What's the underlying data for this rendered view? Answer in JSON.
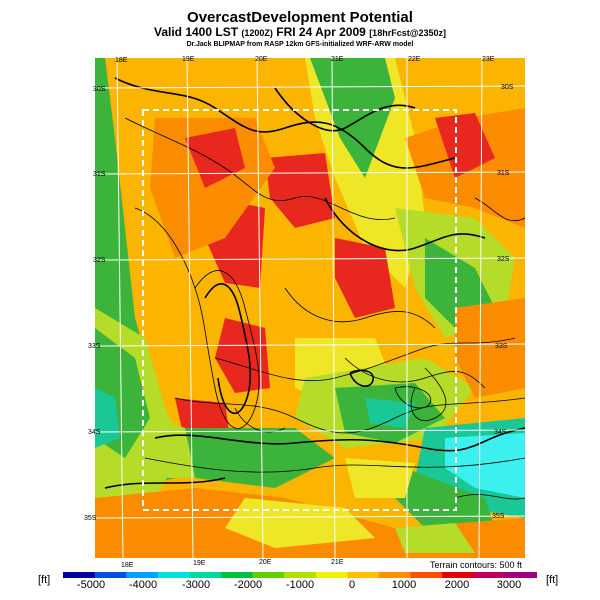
{
  "header": {
    "title": "OvercastDevelopment Potential",
    "valid_main": "Valid 1400 LST",
    "valid_utc": "(1200Z)",
    "valid_date": "FRI 24 Apr 2009",
    "forecast": "[18hrFcst@2350z]",
    "credit": "Dr.Jack BLIPMAP from RASP 12km GFS-initialized WRF-ARW model"
  },
  "map": {
    "lon_labels_top": [
      "18E",
      "19E",
      "20E",
      "21E",
      "22E",
      "23E"
    ],
    "lon_labels_bottom": [
      "18E",
      "19E",
      "20E",
      "21E"
    ],
    "lat_labels_left": [
      "30S",
      "31S",
      "32S",
      "33S",
      "34S",
      "35S"
    ],
    "lat_labels_right": [
      "30S",
      "31S",
      "32S",
      "33S",
      "34S",
      "35S"
    ],
    "terrain_note": "Terrain contours: 500 ft"
  },
  "colorbar": {
    "unit": "[ft]",
    "ticks": [
      "-5000",
      "-4000",
      "-3000",
      "-2000",
      "-1000",
      "0",
      "1000",
      "2000",
      "3000"
    ],
    "colors": [
      "#0000a0",
      "#0050e0",
      "#00a0ff",
      "#00e0e0",
      "#00d8a0",
      "#00c040",
      "#60d000",
      "#b0e000",
      "#f0f000",
      "#ffc000",
      "#ff9000",
      "#ff5000",
      "#e00000",
      "#c00060",
      "#a00080"
    ]
  },
  "field_colors": {
    "red": "#e8281e",
    "orange": "#fb8c00",
    "amber": "#fbb400",
    "yellow": "#f0e628",
    "lime": "#b4dc28",
    "green": "#3cb43c",
    "teal": "#19c896",
    "cyan": "#3cf0f0"
  }
}
